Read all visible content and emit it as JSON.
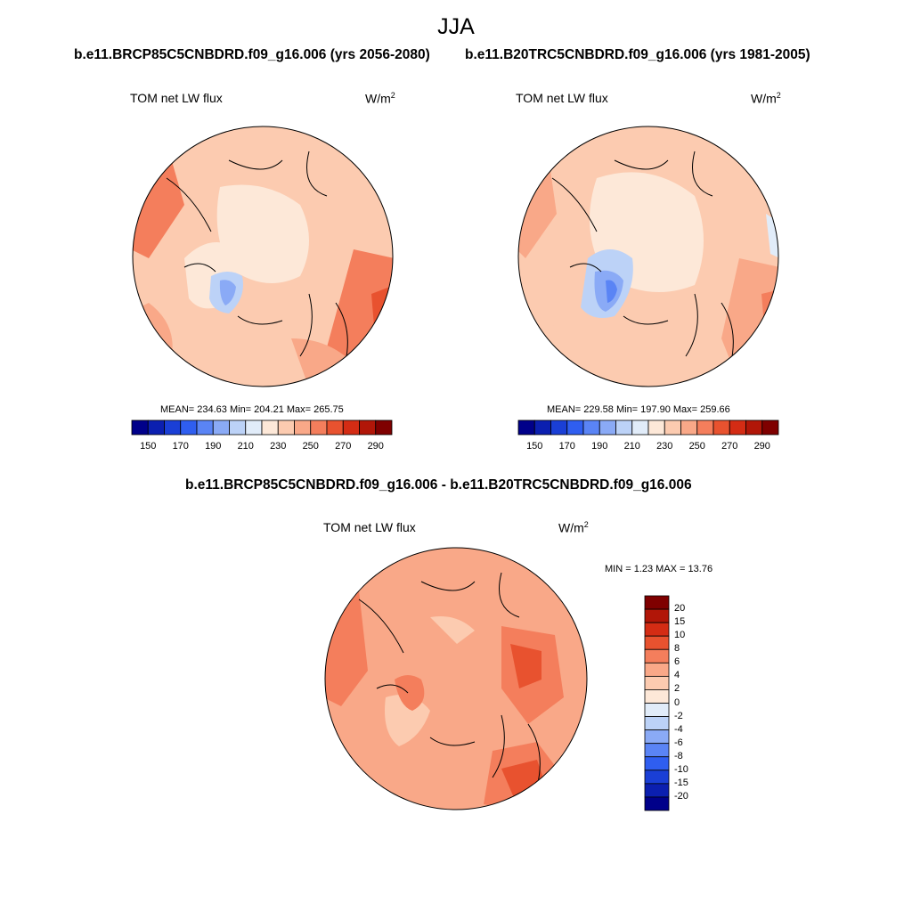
{
  "season": "JJA",
  "top_titles": {
    "left": "b.e11.BRCP85C5CNBDRD.f09_g16.006 (yrs 2056-2080)",
    "right": "b.e11.B20TRC5CNBDRD.f09_g16.006 (yrs 1981-2005)"
  },
  "bottom_title": "b.e11.BRCP85C5CNBDRD.f09_g16.006 - b.e11.B20TRC5CNBDRD.f09_g16.006",
  "panels": {
    "left": {
      "variable": "TOM net LW flux",
      "units": "W/m",
      "units_exp": "2",
      "stats": "MEAN= 234.63  Min= 204.21  Max= 265.75"
    },
    "right": {
      "variable": "TOM net LW flux",
      "units": "W/m",
      "units_exp": "2",
      "stats": "MEAN= 229.58  Min= 197.90  Max= 259.66"
    },
    "diff": {
      "variable": "TOM net LW flux",
      "units": "W/m",
      "units_exp": "2",
      "stats": "MIN =   1.23 MAX =  13.76"
    }
  },
  "colorbar_abs": {
    "labels": [
      "150",
      "170",
      "190",
      "210",
      "230",
      "250",
      "270",
      "290"
    ],
    "colors": [
      "#00008a",
      "#0b1fb0",
      "#1a3fd6",
      "#2f5ef0",
      "#5a84f5",
      "#8aaaf6",
      "#bcd2f7",
      "#e1ecf9",
      "#fde8d8",
      "#fccbb0",
      "#f9a888",
      "#f47e5c",
      "#e8522f",
      "#d42c14",
      "#b11608",
      "#7f0000"
    ]
  },
  "colorbar_diff": {
    "labels": [
      "20",
      "15",
      "10",
      "8",
      "6",
      "4",
      "2",
      "0",
      "-2",
      "-4",
      "-6",
      "-8",
      "-10",
      "-15",
      "-20"
    ],
    "colors": [
      "#7f0000",
      "#b11608",
      "#d42c14",
      "#e8522f",
      "#f47e5c",
      "#f9a888",
      "#fccbb0",
      "#fde8d8",
      "#e1ecf9",
      "#bcd2f7",
      "#8aaaf6",
      "#5a84f5",
      "#2f5ef0",
      "#1a3fd6",
      "#0b1fb0",
      "#00008a"
    ]
  }
}
